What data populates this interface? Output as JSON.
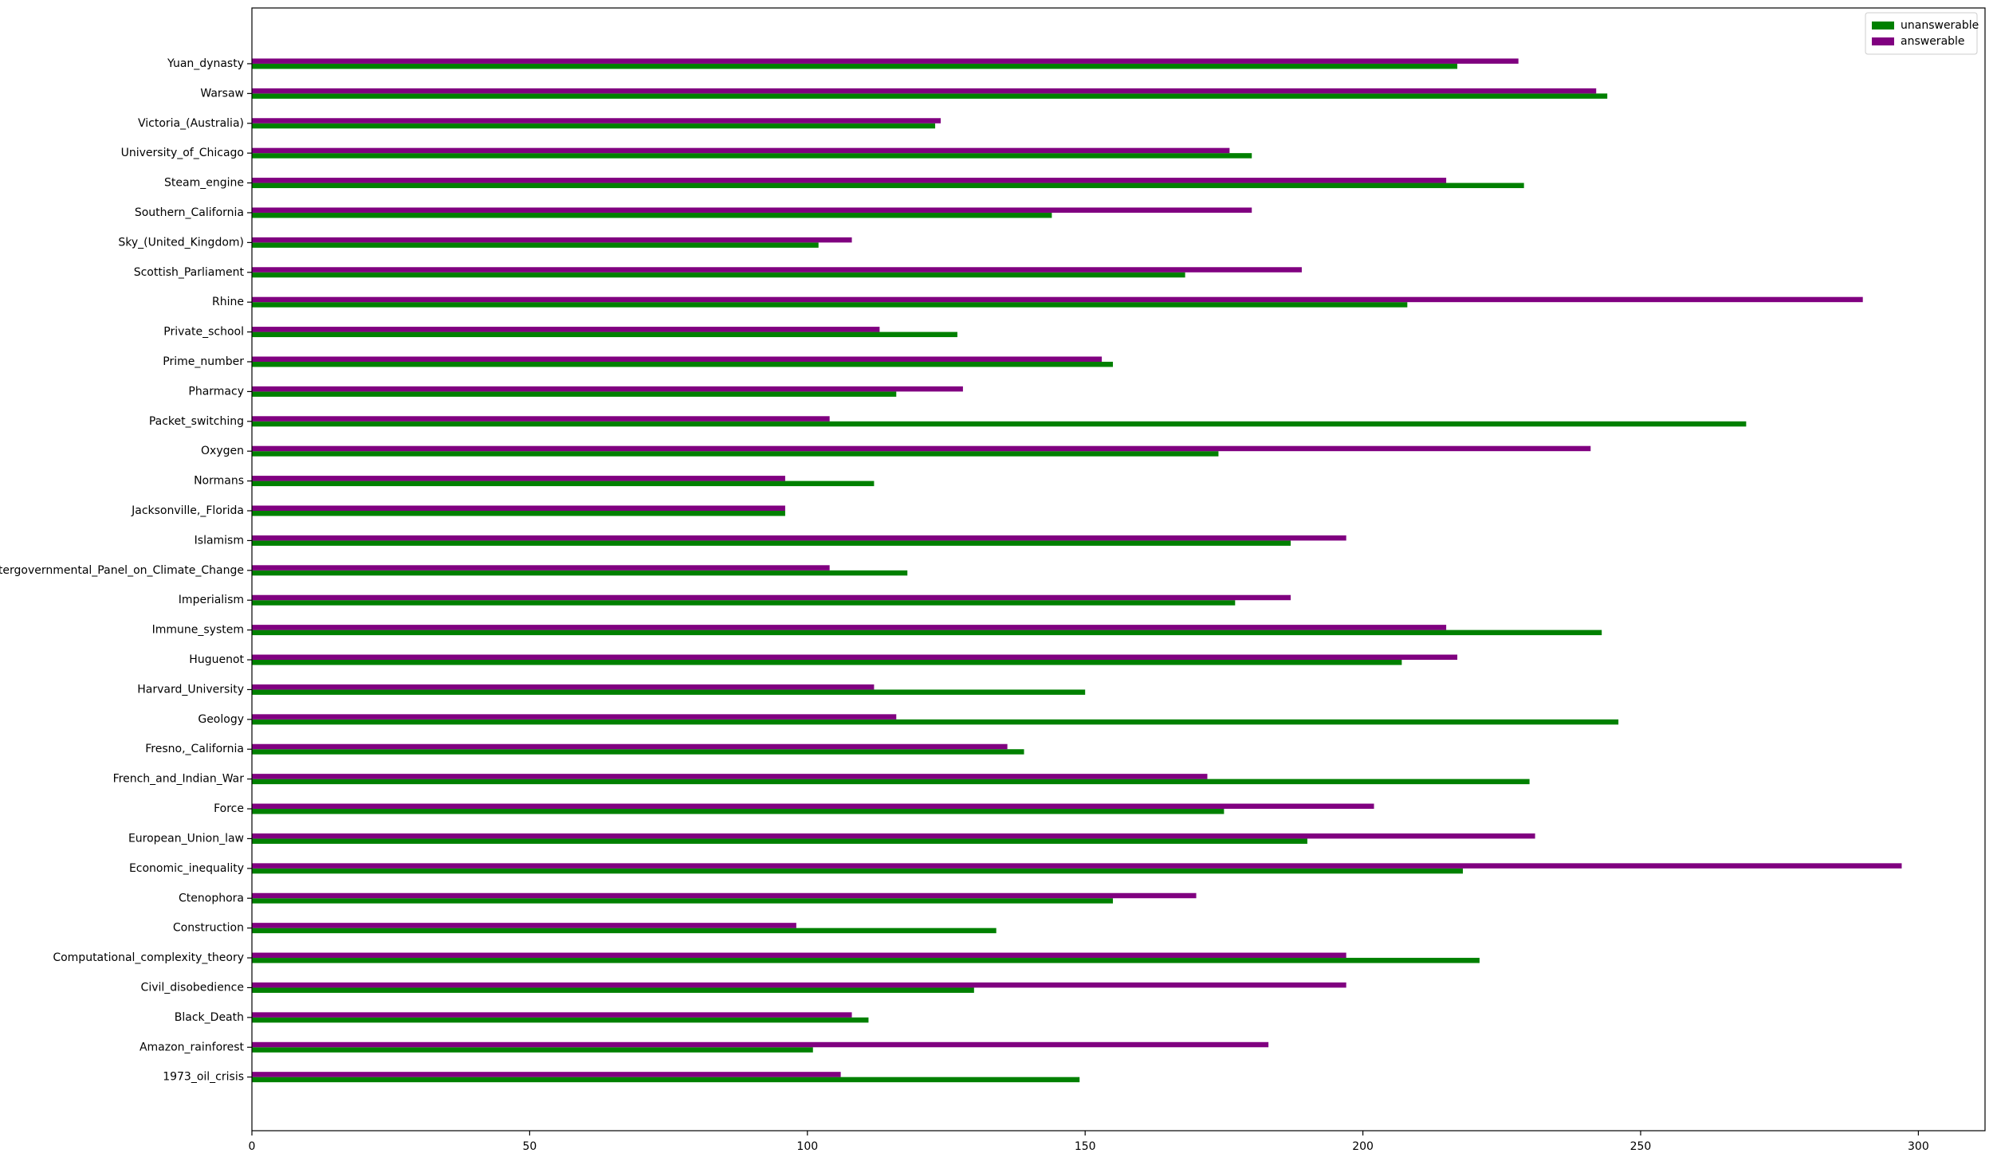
{
  "chart_data": {
    "type": "barh",
    "categories": [
      "1973_oil_crisis",
      "Amazon_rainforest",
      "Black_Death",
      "Civil_disobedience",
      "Computational_complexity_theory",
      "Construction",
      "Ctenophora",
      "Economic_inequality",
      "European_Union_law",
      "Force",
      "French_and_Indian_War",
      "Fresno,_California",
      "Geology",
      "Harvard_University",
      "Huguenot",
      "Immune_system",
      "Imperialism",
      "Intergovernmental_Panel_on_Climate_Change",
      "Islamism",
      "Jacksonville,_Florida",
      "Normans",
      "Oxygen",
      "Packet_switching",
      "Pharmacy",
      "Prime_number",
      "Private_school",
      "Rhine",
      "Scottish_Parliament",
      "Sky_(United_Kingdom)",
      "Southern_California",
      "Steam_engine",
      "University_of_Chicago",
      "Victoria_(Australia)",
      "Warsaw",
      "Yuan_dynasty"
    ],
    "series": [
      {
        "name": "unanswerable",
        "color": "#008000",
        "values": [
          149,
          101,
          111,
          130,
          221,
          134,
          155,
          218,
          190,
          175,
          230,
          139,
          246,
          150,
          207,
          243,
          177,
          118,
          187,
          96,
          112,
          174,
          269,
          116,
          155,
          127,
          208,
          168,
          102,
          144,
          229,
          180,
          123,
          244,
          217
        ]
      },
      {
        "name": "answerable",
        "color": "#800080",
        "values": [
          106,
          183,
          108,
          197,
          197,
          98,
          170,
          297,
          231,
          202,
          172,
          136,
          116,
          112,
          217,
          215,
          187,
          104,
          197,
          96,
          96,
          241,
          104,
          128,
          153,
          113,
          290,
          189,
          108,
          180,
          215,
          176,
          124,
          242,
          228
        ]
      }
    ],
    "xlim": [
      0,
      312
    ],
    "xticks": [
      0,
      50,
      100,
      150,
      200,
      250,
      300
    ],
    "legend": "upper right"
  }
}
